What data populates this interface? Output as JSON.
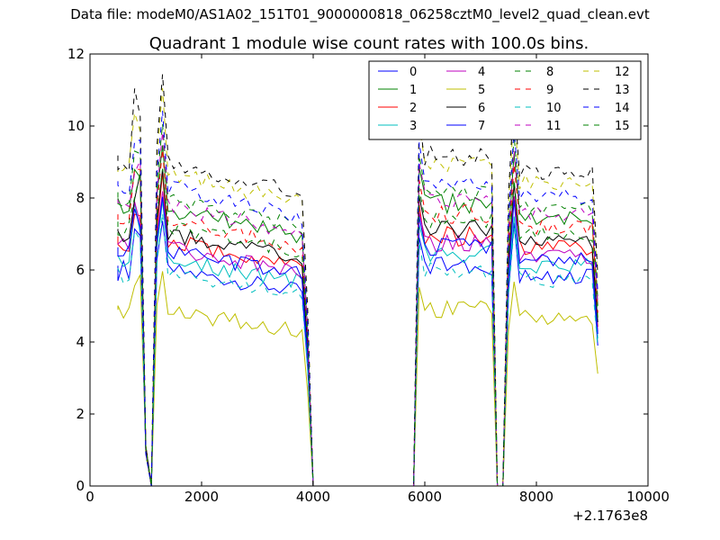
{
  "header": {
    "suptitle": "Data file: modeM0/AS1A02_151T01_9000000818_06258cztM0_level2_quad_clean.evt"
  },
  "chart_data": {
    "type": "line",
    "title": "Quadrant 1 module wise count rates with 100.0s bins.",
    "xlabel": "",
    "ylabel": "",
    "x_offset_label": "+2.1763e8",
    "xlim": [
      0,
      10000
    ],
    "ylim": [
      0,
      12
    ],
    "xticks": [
      "0",
      "2000",
      "4000",
      "6000",
      "8000",
      "10000"
    ],
    "yticks": [
      "0",
      "2",
      "4",
      "6",
      "8",
      "10",
      "12"
    ],
    "grid": false,
    "legend_position": "top-right",
    "segments": [
      {
        "start": 500,
        "step": 100,
        "count": 11
      },
      {
        "start": 1600,
        "step": 200,
        "count": 12
      },
      {
        "start": 5900,
        "step": 100,
        "count": 16
      },
      {
        "start": 7600,
        "step": 100,
        "count": 16
      }
    ],
    "series": [
      {
        "name": "0",
        "color": "#0000ff",
        "style": "solid",
        "level": 6.0
      },
      {
        "name": "1",
        "color": "#008000",
        "style": "solid",
        "level": 7.7
      },
      {
        "name": "2",
        "color": "#ff0000",
        "style": "solid",
        "level": 6.8
      },
      {
        "name": "3",
        "color": "#00bfbf",
        "style": "solid",
        "level": 6.3
      },
      {
        "name": "4",
        "color": "#bf00bf",
        "style": "solid",
        "level": 6.6
      },
      {
        "name": "5",
        "color": "#bfbf00",
        "style": "solid",
        "level": 4.8
      },
      {
        "name": "6",
        "color": "#000000",
        "style": "solid",
        "level": 7.0
      },
      {
        "name": "7",
        "color": "#0000ff",
        "style": "solid",
        "level": 6.5
      },
      {
        "name": "8",
        "color": "#008000",
        "style": "dashed",
        "level": 8.0
      },
      {
        "name": "9",
        "color": "#ff0000",
        "style": "dashed",
        "level": 7.4
      },
      {
        "name": "10",
        "color": "#00bfbf",
        "style": "dashed",
        "level": 5.9
      },
      {
        "name": "11",
        "color": "#bf00bf",
        "style": "dashed",
        "level": 7.8
      },
      {
        "name": "12",
        "color": "#bfbf00",
        "style": "dashed",
        "level": 8.7
      },
      {
        "name": "13",
        "color": "#000000",
        "style": "dashed",
        "level": 9.0
      },
      {
        "name": "14",
        "color": "#0000ff",
        "style": "dashed",
        "level": 8.3
      },
      {
        "name": "15",
        "color": "#008000",
        "style": "dashed",
        "level": 7.2
      }
    ]
  }
}
